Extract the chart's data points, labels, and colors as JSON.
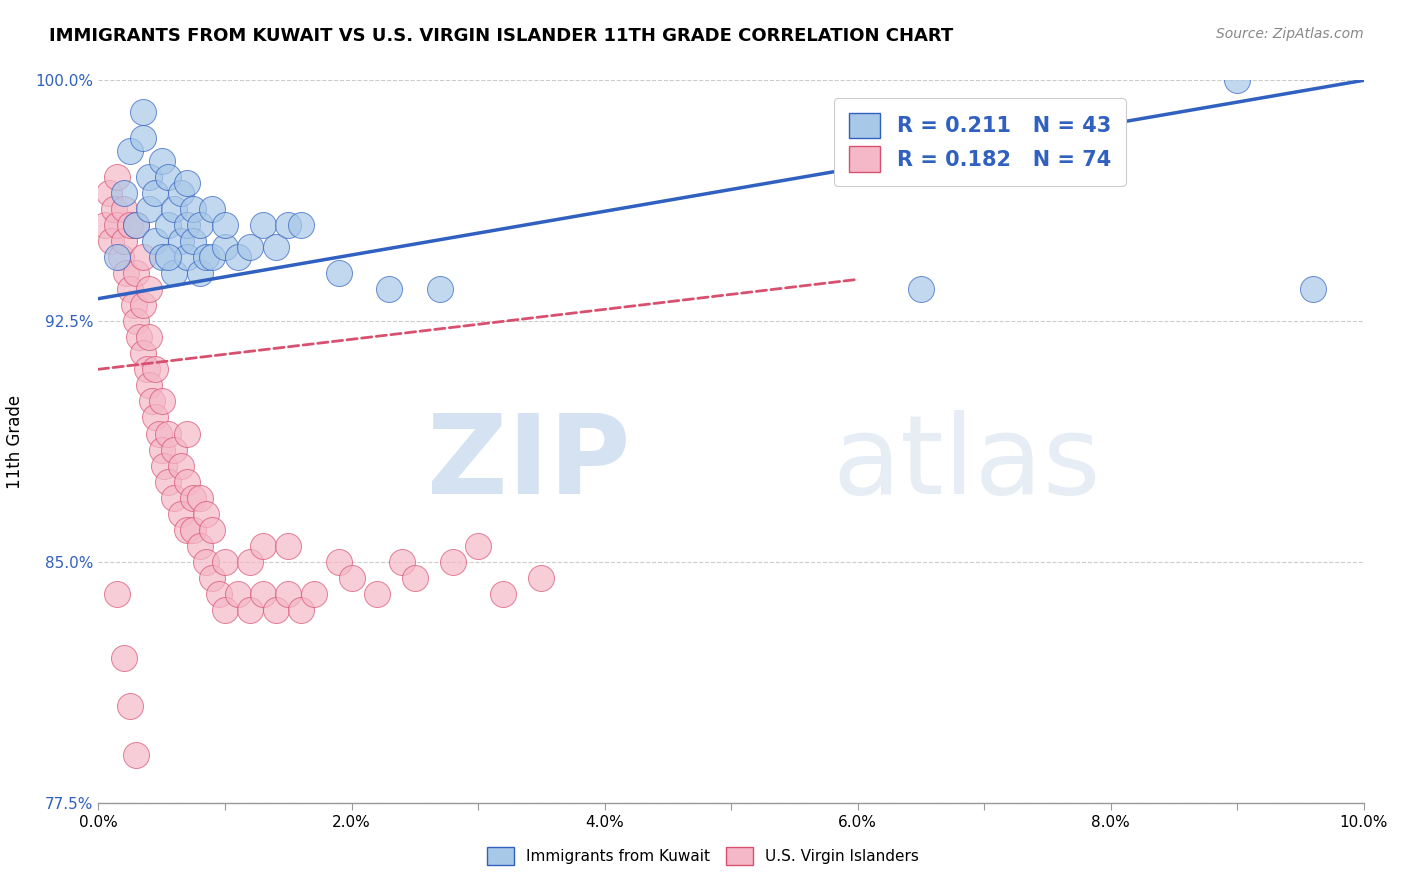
{
  "title": "IMMIGRANTS FROM KUWAIT VS U.S. VIRGIN ISLANDER 11TH GRADE CORRELATION CHART",
  "source": "Source: ZipAtlas.com",
  "ylabel": "11th Grade",
  "xlim": [
    0.0,
    10.0
  ],
  "ylim": [
    77.5,
    100.0
  ],
  "xtick_labels": [
    "0.0%",
    "",
    "2.0%",
    "",
    "4.0%",
    "",
    "6.0%",
    "",
    "8.0%",
    "",
    "10.0%"
  ],
  "ytick_labels": [
    "77.5%",
    "85.0%",
    "92.5%",
    "100.0%"
  ],
  "blue_R": "0.211",
  "blue_N": "43",
  "pink_R": "0.182",
  "pink_N": "74",
  "blue_color": "#a8c8e8",
  "pink_color": "#f4b8c8",
  "trend_blue": "#3060c0",
  "trend_pink": "#d85070",
  "legend_label_blue": "Immigrants from Kuwait",
  "legend_label_pink": "U.S. Virgin Islanders",
  "blue_trend_x0": 0.0,
  "blue_trend_y0": 93.2,
  "blue_trend_x1": 10.0,
  "blue_trend_y1": 100.0,
  "pink_trend_x0": 0.0,
  "pink_trend_y0": 91.0,
  "pink_trend_x1": 6.0,
  "pink_trend_y1": 93.8,
  "blue_scatter_x": [
    0.15,
    0.2,
    0.25,
    0.3,
    0.35,
    0.35,
    0.4,
    0.4,
    0.45,
    0.45,
    0.5,
    0.5,
    0.55,
    0.55,
    0.6,
    0.6,
    0.65,
    0.65,
    0.7,
    0.7,
    0.7,
    0.75,
    0.75,
    0.8,
    0.8,
    0.85,
    0.9,
    0.9,
    1.0,
    1.0,
    1.1,
    1.2,
    1.3,
    1.4,
    1.5,
    1.6,
    1.9,
    2.3,
    2.7,
    6.5,
    9.0,
    9.6,
    0.55
  ],
  "blue_scatter_y": [
    94.5,
    96.5,
    97.8,
    95.5,
    98.2,
    99.0,
    96.0,
    97.0,
    95.0,
    96.5,
    94.5,
    97.5,
    95.5,
    97.0,
    94.0,
    96.0,
    95.0,
    96.5,
    94.5,
    95.5,
    96.8,
    95.0,
    96.0,
    94.0,
    95.5,
    94.5,
    94.5,
    96.0,
    94.8,
    95.5,
    94.5,
    94.8,
    95.5,
    94.8,
    95.5,
    95.5,
    94.0,
    93.5,
    93.5,
    93.5,
    100.0,
    93.5,
    94.5
  ],
  "pink_scatter_x": [
    0.05,
    0.08,
    0.1,
    0.12,
    0.15,
    0.15,
    0.18,
    0.2,
    0.2,
    0.22,
    0.25,
    0.25,
    0.28,
    0.3,
    0.3,
    0.3,
    0.32,
    0.35,
    0.35,
    0.35,
    0.38,
    0.4,
    0.4,
    0.4,
    0.42,
    0.45,
    0.45,
    0.48,
    0.5,
    0.5,
    0.52,
    0.55,
    0.55,
    0.6,
    0.6,
    0.65,
    0.65,
    0.7,
    0.7,
    0.7,
    0.75,
    0.75,
    0.8,
    0.8,
    0.85,
    0.85,
    0.9,
    0.9,
    0.95,
    1.0,
    1.0,
    1.1,
    1.2,
    1.2,
    1.3,
    1.3,
    1.4,
    1.5,
    1.5,
    1.6,
    1.7,
    1.9,
    2.0,
    2.2,
    2.4,
    2.5,
    2.8,
    3.0,
    3.2,
    3.5,
    0.15,
    0.2,
    0.25,
    0.3
  ],
  "pink_scatter_y": [
    95.5,
    96.5,
    95.0,
    96.0,
    95.5,
    97.0,
    94.5,
    95.0,
    96.0,
    94.0,
    93.5,
    95.5,
    93.0,
    92.5,
    94.0,
    95.5,
    92.0,
    91.5,
    93.0,
    94.5,
    91.0,
    90.5,
    92.0,
    93.5,
    90.0,
    89.5,
    91.0,
    89.0,
    88.5,
    90.0,
    88.0,
    87.5,
    89.0,
    87.0,
    88.5,
    86.5,
    88.0,
    86.0,
    87.5,
    89.0,
    86.0,
    87.0,
    85.5,
    87.0,
    85.0,
    86.5,
    84.5,
    86.0,
    84.0,
    83.5,
    85.0,
    84.0,
    83.5,
    85.0,
    84.0,
    85.5,
    83.5,
    84.0,
    85.5,
    83.5,
    84.0,
    85.0,
    84.5,
    84.0,
    85.0,
    84.5,
    85.0,
    85.5,
    84.0,
    84.5,
    84.0,
    82.0,
    80.5,
    79.0
  ]
}
